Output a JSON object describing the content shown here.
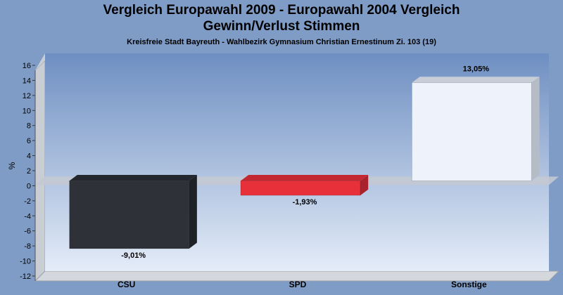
{
  "title_line1": "Vergleich Europawahl 2009 - Europawahl 2004 Vergleich",
  "title_line2": "Gewinn/Verlust Stimmen",
  "subtitle": "Kreisfreie Stadt Bayreuth - Wahlbezirk Gymnasium Christian Ernestinum  Zi. 103 (19)",
  "chart_data": {
    "type": "bar",
    "title": "Vergleich Europawahl 2009 - Europawahl 2004 Vergleich Gewinn/Verlust Stimmen",
    "subtitle": "Kreisfreie Stadt Bayreuth - Wahlbezirk Gymnasium Christian Ernestinum  Zi. 103 (19)",
    "categories": [
      "CSU",
      "SPD",
      "Sonstige"
    ],
    "values": [
      -9.01,
      -1.93,
      13.05
    ],
    "data_labels": [
      "-9,01%",
      "-1,93%",
      "13,05%"
    ],
    "ylabel": "%",
    "xlabel": "",
    "ylim": [
      -12,
      16
    ],
    "yticks": [
      16,
      14,
      12,
      10,
      8,
      6,
      4,
      2,
      0,
      -2,
      -4,
      -6,
      -8,
      -10,
      -12
    ],
    "grid": false,
    "colors": [
      "#2e3238",
      "#e8303a",
      "#eef3fb"
    ],
    "side_colors": [
      "#1e2126",
      "#a8232b",
      "#b6bcc6"
    ],
    "top_colors": [
      "#24272d",
      "#c42932",
      "#c8ced8"
    ]
  }
}
